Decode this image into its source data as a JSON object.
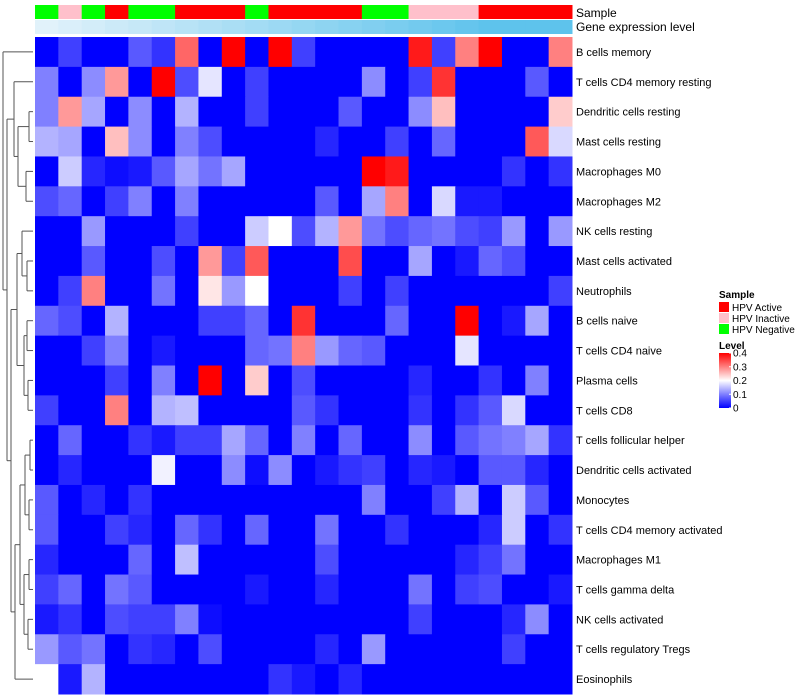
{
  "chart_data": {
    "type": "heatmap",
    "row_labels": [
      "B cells memory",
      "T cells CD4 memory resting",
      "Dendritic cells resting",
      "Mast cells resting",
      "Macrophages M0",
      "Macrophages M2",
      "NK cells resting",
      "Mast cells activated",
      "Neutrophils",
      "B cells naive",
      "T cells CD4 naive",
      "Plasma cells",
      "T cells CD8",
      "T cells follicular helper",
      "Dendritic cells activated",
      "Monocytes",
      "T cells CD4 memory activated",
      "Macrophages M1",
      "T cells gamma delta",
      "NK cells activated",
      "T cells regulatory  Tregs",
      "Eosinophils"
    ],
    "sample_groups": [
      "HPV Negative",
      "HPV Inactive",
      "HPV Negative",
      "HPV Active",
      "HPV Negative",
      "HPV Negative",
      "HPV Active",
      "HPV Active",
      "HPV Active",
      "HPV Negative",
      "HPV Active",
      "HPV Active",
      "HPV Active",
      "HPV Active",
      "HPV Negative",
      "HPV Negative",
      "HPV Inactive",
      "HPV Inactive",
      "HPV Inactive",
      "HPV Active",
      "HPV Active",
      "HPV Active",
      "HPV Active"
    ],
    "expression_level": [
      0.05,
      0.1,
      0.15,
      0.2,
      0.25,
      0.3,
      0.35,
      0.4,
      0.45,
      0.5,
      0.55,
      0.6,
      0.65,
      0.7,
      0.75,
      0.8,
      0.85,
      0.9,
      0.95,
      1.0,
      1.0,
      1.0,
      1.0
    ],
    "values": [
      [
        0.0,
        0.05,
        0.0,
        0.0,
        0.07,
        0.04,
        0.32,
        0.0,
        0.4,
        0.0,
        0.4,
        0.05,
        0.0,
        0.0,
        0.0,
        0.0,
        0.38,
        0.05,
        0.3,
        0.4,
        0.0,
        0.0,
        0.3
      ],
      [
        0.1,
        0.0,
        0.11,
        0.28,
        0.0,
        0.4,
        0.06,
        0.18,
        0.0,
        0.05,
        0.0,
        0.0,
        0.0,
        0.0,
        0.11,
        0.0,
        0.05,
        0.36,
        0.0,
        0.0,
        0.0,
        0.07,
        0.0
      ],
      [
        0.1,
        0.28,
        0.13,
        0.0,
        0.11,
        0.0,
        0.14,
        0.0,
        0.0,
        0.05,
        0.0,
        0.0,
        0.0,
        0.07,
        0.0,
        0.0,
        0.11,
        0.25,
        0.0,
        0.0,
        0.0,
        0.0,
        0.24
      ],
      [
        0.14,
        0.13,
        0.0,
        0.25,
        0.11,
        0.0,
        0.1,
        0.06,
        0.0,
        0.0,
        0.0,
        0.0,
        0.03,
        0.0,
        0.0,
        0.05,
        0.0,
        0.08,
        0.0,
        0.0,
        0.0,
        0.33,
        0.17
      ],
      [
        0.0,
        0.16,
        0.03,
        0.01,
        0.02,
        0.07,
        0.13,
        0.09,
        0.13,
        0.0,
        0.0,
        0.0,
        0.0,
        0.0,
        0.4,
        0.38,
        0.0,
        0.0,
        0.0,
        0.0,
        0.04,
        0.0,
        0.04
      ],
      [
        0.06,
        0.08,
        0.0,
        0.05,
        0.1,
        0.0,
        0.1,
        0.0,
        0.0,
        0.0,
        0.0,
        0.0,
        0.07,
        0.0,
        0.13,
        0.3,
        0.0,
        0.17,
        0.02,
        0.02,
        0.0,
        0.0,
        0.0
      ],
      [
        0.0,
        0.0,
        0.12,
        0.0,
        0.0,
        0.0,
        0.05,
        0.0,
        0.0,
        0.16,
        0.2,
        0.06,
        0.14,
        0.28,
        0.09,
        0.06,
        0.08,
        0.09,
        0.06,
        0.05,
        0.12,
        0.0,
        0.12
      ],
      [
        0.0,
        0.0,
        0.07,
        0.0,
        0.0,
        0.06,
        0.0,
        0.28,
        0.05,
        0.33,
        0.0,
        0.0,
        0.0,
        0.34,
        0.0,
        0.0,
        0.13,
        0.0,
        0.02,
        0.08,
        0.06,
        0.0,
        0.0
      ],
      [
        0.0,
        0.05,
        0.3,
        0.0,
        0.0,
        0.09,
        0.0,
        0.22,
        0.12,
        0.2,
        0.0,
        0.0,
        0.0,
        0.05,
        0.0,
        0.05,
        0.0,
        0.0,
        0.0,
        0.0,
        0.0,
        0.0,
        0.05
      ],
      [
        0.08,
        0.06,
        0.0,
        0.14,
        0.0,
        0.0,
        0.0,
        0.05,
        0.05,
        0.08,
        0.0,
        0.36,
        0.0,
        0.0,
        0.0,
        0.08,
        0.0,
        0.0,
        0.4,
        0.0,
        0.02,
        0.13,
        0.0
      ],
      [
        0.0,
        0.0,
        0.05,
        0.1,
        0.0,
        0.02,
        0.0,
        0.0,
        0.0,
        0.08,
        0.09,
        0.3,
        0.12,
        0.08,
        0.07,
        0.0,
        0.0,
        0.0,
        0.18,
        0.0,
        0.0,
        0.0,
        0.0
      ],
      [
        0.0,
        0.0,
        0.0,
        0.05,
        0.0,
        0.1,
        0.0,
        0.4,
        0.0,
        0.24,
        0.0,
        0.06,
        0.0,
        0.0,
        0.0,
        0.0,
        0.03,
        0.0,
        0.0,
        0.04,
        0.0,
        0.1,
        0.0
      ],
      [
        0.05,
        0.0,
        0.0,
        0.3,
        0.0,
        0.14,
        0.15,
        0.0,
        0.0,
        0.0,
        0.0,
        0.07,
        0.04,
        0.0,
        0.0,
        0.0,
        0.04,
        0.0,
        0.04,
        0.07,
        0.17,
        0.0,
        0.0
      ],
      [
        0.0,
        0.08,
        0.0,
        0.0,
        0.04,
        0.02,
        0.05,
        0.05,
        0.13,
        0.08,
        0.0,
        0.1,
        0.0,
        0.08,
        0.0,
        0.0,
        0.11,
        0.0,
        0.07,
        0.09,
        0.1,
        0.13,
        0.04
      ],
      [
        0.0,
        0.03,
        0.0,
        0.0,
        0.0,
        0.19,
        0.0,
        0.0,
        0.11,
        0.01,
        0.11,
        0.0,
        0.02,
        0.04,
        0.05,
        0.0,
        0.03,
        0.02,
        0.0,
        0.07,
        0.07,
        0.03,
        0.0
      ],
      [
        0.07,
        0.0,
        0.03,
        0.0,
        0.04,
        0.0,
        0.0,
        0.0,
        0.0,
        0.0,
        0.0,
        0.0,
        0.0,
        0.0,
        0.1,
        0.0,
        0.0,
        0.05,
        0.14,
        0.0,
        0.16,
        0.07,
        0.0
      ],
      [
        0.07,
        0.0,
        0.0,
        0.05,
        0.03,
        0.0,
        0.08,
        0.04,
        0.0,
        0.08,
        0.0,
        0.0,
        0.09,
        0.0,
        0.0,
        0.04,
        0.0,
        0.0,
        0.0,
        0.03,
        0.16,
        0.0,
        0.04
      ],
      [
        0.03,
        0.0,
        0.0,
        0.0,
        0.08,
        0.0,
        0.15,
        0.0,
        0.0,
        0.0,
        0.0,
        0.0,
        0.06,
        0.0,
        0.0,
        0.0,
        0.0,
        0.0,
        0.03,
        0.05,
        0.09,
        0.0,
        0.0
      ],
      [
        0.05,
        0.08,
        0.0,
        0.09,
        0.07,
        0.0,
        0.0,
        0.0,
        0.0,
        0.02,
        0.0,
        0.0,
        0.03,
        0.0,
        0.0,
        0.0,
        0.09,
        0.0,
        0.05,
        0.06,
        0.0,
        0.0,
        0.02
      ],
      [
        0.02,
        0.04,
        0.0,
        0.06,
        0.05,
        0.05,
        0.1,
        0.01,
        0.0,
        0.0,
        0.0,
        0.0,
        0.0,
        0.0,
        0.0,
        0.0,
        0.05,
        0.0,
        0.0,
        0.0,
        0.03,
        0.11,
        0.0
      ],
      [
        0.12,
        0.07,
        0.09,
        0.0,
        0.04,
        0.03,
        0.0,
        0.06,
        0.0,
        0.0,
        0.0,
        0.0,
        0.03,
        0.0,
        0.12,
        0.0,
        0.0,
        0.0,
        0.0,
        0.0,
        0.05,
        0.0,
        0.0
      ],
      [
        0.2,
        0.02,
        0.14,
        0.0,
        0.0,
        0.0,
        0.0,
        0.0,
        0.0,
        0.0,
        0.04,
        0.02,
        0.0,
        0.03,
        0.0,
        0.0,
        0.0,
        0.0,
        0.0,
        0.0,
        0.0,
        0.0,
        0.0
      ]
    ],
    "annotations": {
      "sample_title": "Sample",
      "expression_title": "Gene expression level"
    },
    "legend_sample": {
      "title": "Sample",
      "entries": [
        {
          "label": "HPV Active",
          "color": "#ff0000"
        },
        {
          "label": "HPV Inactive",
          "color": "#ffc0cb"
        },
        {
          "label": "HPV Negative",
          "color": "#00ff00"
        }
      ]
    },
    "legend_level": {
      "title": "Level",
      "ticks": [
        "0.4",
        "0.3",
        "0.2",
        "0.1",
        "0"
      ],
      "tick_values": [
        0.4,
        0.3,
        0.2,
        0.1,
        0
      ],
      "range": [
        0,
        0.4
      ],
      "colors": {
        "low": "#0000ff",
        "mid": "#ffffff",
        "high": "#ff0000"
      }
    }
  }
}
